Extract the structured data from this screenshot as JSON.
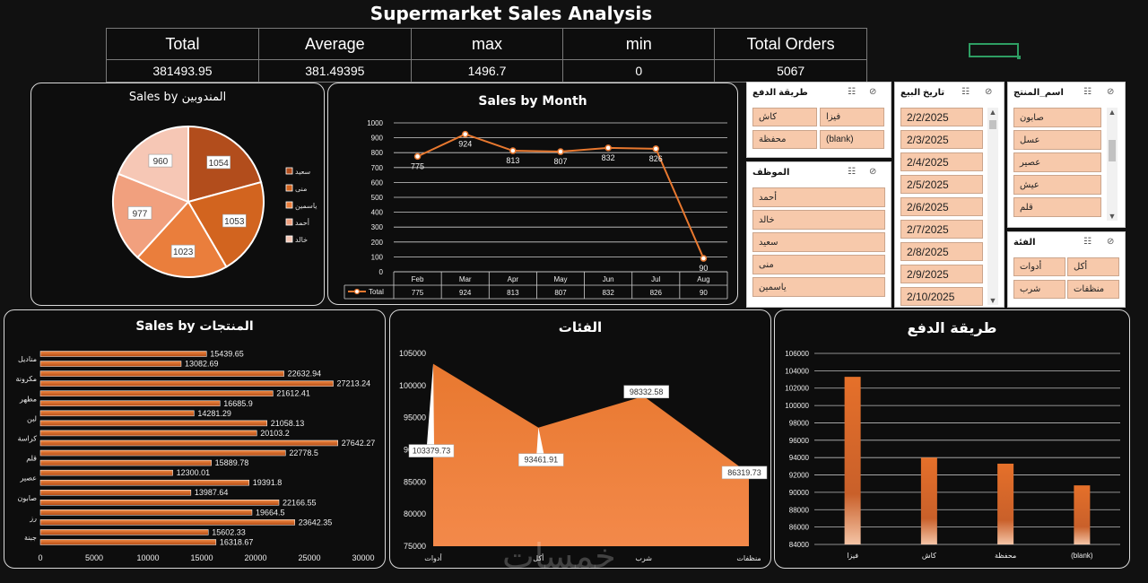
{
  "title": "Supermarket Sales Analysis",
  "kpis": {
    "headers": [
      "Total",
      "Average",
      "max",
      "min",
      "Total Orders"
    ],
    "values": [
      "381493.95",
      "381.49395",
      "1496.7",
      "0",
      "5067"
    ]
  },
  "pie": {
    "title": "Sales by المندوبين",
    "chart_data": {
      "type": "pie",
      "labels": [
        "سعيد",
        "منى",
        "ياسمين",
        "أحمد",
        "خالد"
      ],
      "values": [
        1054,
        1053,
        1023,
        977,
        960
      ],
      "colors": [
        "#b24d1c",
        "#d2641f",
        "#ea7e3c",
        "#f1a07e",
        "#f6c7b5"
      ]
    }
  },
  "line": {
    "title": "Sales by Month",
    "legend_label": "Total",
    "chart_data": {
      "type": "line",
      "categories": [
        "Feb",
        "Mar",
        "Apr",
        "May",
        "Jun",
        "Jul",
        "Aug"
      ],
      "series": [
        {
          "name": "Total",
          "values": [
            775,
            924,
            813,
            807,
            832,
            826,
            90
          ]
        }
      ],
      "ylim": [
        0,
        1000
      ],
      "yticks": [
        0,
        100,
        200,
        300,
        400,
        500,
        600,
        700,
        800,
        900,
        1000
      ],
      "color": "#e8782f"
    }
  },
  "bars": {
    "title": "Sales by المنتجات",
    "chart_data": {
      "type": "bar",
      "orientation": "horizontal",
      "values": [
        15439.65,
        13082.69,
        22632.94,
        27213.24,
        21612.41,
        16685.9,
        14281.29,
        21058.13,
        20103.2,
        27642.27,
        22778.5,
        15889.78,
        12300.01,
        19391.8,
        13987.64,
        22166.55,
        19664.5,
        23642.35,
        15602.33,
        16318.67
      ],
      "category_labels": [
        "مناديل",
        "مكرونة",
        "مطهر",
        "لبن",
        "كراسة",
        "قلم",
        "عصير",
        "صابون",
        "رز",
        "جبنة"
      ],
      "xlim": [
        0,
        30000
      ],
      "xticks": [
        "0",
        "5000",
        "10000",
        "15000",
        "20000",
        "25000",
        "30000"
      ],
      "color": "#e8782f"
    }
  },
  "area": {
    "title": "الفئات",
    "chart_data": {
      "type": "area",
      "categories": [
        "أدوات",
        "أكل",
        "شرب",
        "منظفات"
      ],
      "values": [
        103379.73,
        93461.91,
        98332.58,
        86319.73
      ],
      "ylim": [
        75000,
        105000
      ],
      "yticks": [
        "75000",
        "80000",
        "85000",
        "90000",
        "95000",
        "100000",
        "105000"
      ],
      "color": "#e8782f"
    }
  },
  "col": {
    "title": "طريقة الدفع",
    "chart_data": {
      "type": "bar",
      "categories": [
        "فيزا",
        "كاش",
        "محفظة",
        "(blank)"
      ],
      "values": [
        103300,
        94000,
        93300,
        90800
      ],
      "ylim": [
        84000,
        106000
      ],
      "yticks": [
        "84000",
        "86000",
        "88000",
        "90000",
        "92000",
        "94000",
        "96000",
        "98000",
        "100000",
        "102000",
        "104000",
        "106000"
      ],
      "color": "#e8782f"
    }
  },
  "slicers": {
    "payment": {
      "title": "طريقة الدفع",
      "items": [
        "كاش",
        "فيزا",
        "(blank)",
        "محفظة"
      ]
    },
    "employee": {
      "title": "الموظف",
      "items": [
        "أحمد",
        "خالد",
        "سعيد",
        "منى",
        "ياسمين"
      ]
    },
    "date": {
      "title": "تاريخ البيع",
      "items": [
        "2/2/2025",
        "2/3/2025",
        "2/4/2025",
        "2/5/2025",
        "2/6/2025",
        "2/7/2025",
        "2/8/2025",
        "2/9/2025",
        "2/10/2025"
      ]
    },
    "product": {
      "title": "اسم_المنتج",
      "items": [
        "صابون",
        "عسل",
        "عصير",
        "عيش",
        "قلم"
      ]
    },
    "category": {
      "title": "الفئة",
      "items": [
        "أكل",
        "أدوات",
        "منظفات",
        "شرب"
      ]
    }
  },
  "watermark": "خمسات",
  "icons": {
    "multiselect": "multiselect-icon",
    "clear_filter": "clear-filter-icon"
  }
}
